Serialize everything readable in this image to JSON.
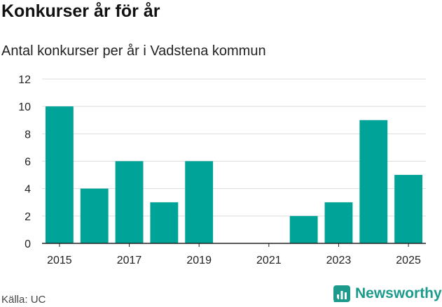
{
  "header": {
    "title": "Konkurser år för år",
    "subtitle": "Antal konkurser per år i Vadstena kommun"
  },
  "footer": {
    "source": "Källa: UC",
    "brand": "Newsworthy"
  },
  "colors": {
    "bar": "#00a398",
    "grid": "#dddddd",
    "brand": "#1c9b8c"
  },
  "icons": {
    "brand_logo": "newsworthy-chart-icon"
  },
  "chart_data": {
    "type": "bar",
    "categories": [
      "2015",
      "2016",
      "2017",
      "2018",
      "2019",
      "2020",
      "2021",
      "2022",
      "2023",
      "2024",
      "2025"
    ],
    "values": [
      10,
      4,
      6,
      3,
      6,
      0,
      0,
      2,
      3,
      9,
      5
    ],
    "x_tick_labels": [
      "2015",
      "2017",
      "2019",
      "2021",
      "2023",
      "2025"
    ],
    "y_ticks": [
      0,
      2,
      4,
      6,
      8,
      10,
      12
    ],
    "ylim": [
      0,
      12
    ],
    "xlabel": "",
    "ylabel": "",
    "grid": true
  }
}
